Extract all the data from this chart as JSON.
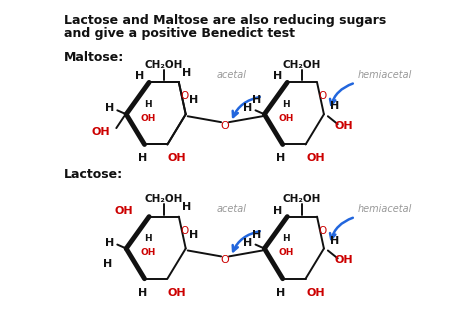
{
  "bg_color": "#ffffff",
  "title_line1": "Lactose and Maltose are also reducing sugars",
  "title_line2": "and give a positive Benedict test",
  "maltose_label": "Maltose:",
  "lactose_label": "Lactose:",
  "acetal_text": "acetal",
  "hemiacetal_text": "hemiacetal",
  "red": "#cc0000",
  "black": "#111111",
  "blue": "#2266dd",
  "gray": "#999999"
}
